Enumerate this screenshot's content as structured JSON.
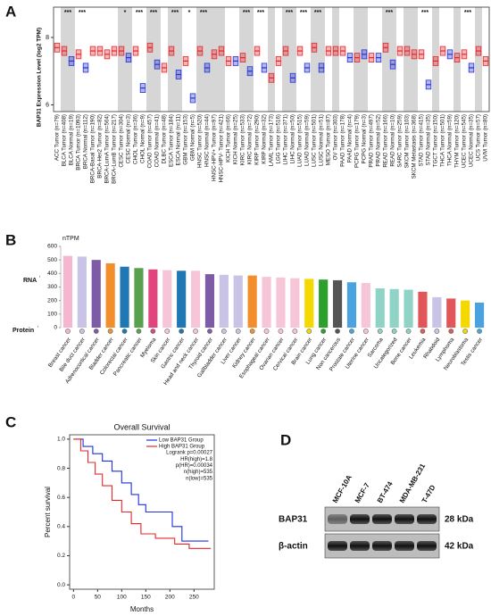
{
  "chart_data": [
    {
      "type": "box",
      "label": "A",
      "ylabel": "BAP31 Expression Level (log2 TPM)",
      "categories": [
        "ACC Tumor (n=79)",
        "BLCA Tumor (n=408)",
        "BLCA Normal (n=19)",
        "BRCA Tumor (n=1093)",
        "BRCA Normal (n=112)",
        "BRCA-Basal Tumor (n=190)",
        "BRCA-Her2 Tumor (n=82)",
        "BRCA-LumA Tumor (n=564)",
        "BRCA-LumB Tumor (n=217)",
        "CESC Tumor (n=304)",
        "CESC Normal (n=3)",
        "CHOL Tumor (n=36)",
        "CHOL Normal (n=9)",
        "COAD Tumor (n=457)",
        "COAD Normal (n=41)",
        "DLBC Tumor (n=48)",
        "ESCA Tumor (n=184)",
        "ESCA Normal (n=11)",
        "GBM Tumor (n=153)",
        "GBM Normal (n=5)",
        "HNSC Tumor (n=520)",
        "HNSC Normal (n=44)",
        "HNSC-HPV+ Tumor (n=97)",
        "HNSC-HPV- Tumor (n=421)",
        "KICH Tumor (n=66)",
        "KICH Normal (n=25)",
        "KIRC Tumor (n=533)",
        "KIRC Normal (n=72)",
        "KIRP Tumor (n=290)",
        "KIRP Normal (n=32)",
        "LAML Tumor (n=173)",
        "LGG Tumor (n=516)",
        "LIHC Tumor (n=371)",
        "LIHC Normal (n=50)",
        "LUAD Tumor (n=515)",
        "LUAD Normal (n=59)",
        "LUSC Tumor (n=501)",
        "LUSC Normal (n=51)",
        "MESO Tumor (n=87)",
        "OV Tumor (n=303)",
        "PAAD Tumor (n=178)",
        "PAAD Normal (n=4)",
        "PCPG Tumor (n=179)",
        "PCPG Normal (n=3)",
        "PRAD Tumor (n=497)",
        "PRAD Normal (n=52)",
        "READ Tumor (n=166)",
        "READ Normal (n=10)",
        "SARC Tumor (n=259)",
        "SKCM Tumor (n=103)",
        "SKCM Metastasis (n=368)",
        "STAD Tumor (n=415)",
        "STAD Normal (n=35)",
        "TGCT Tumor (n=150)",
        "THCA Tumor (n=501)",
        "THCA Normal (n=59)",
        "THYM Tumor (n=120)",
        "UCEC Tumor (n=545)",
        "UCEC Normal (n=35)",
        "UCS Tumor (n=57)",
        "UVM Tumor (n=80)"
      ],
      "values": [
        7.7,
        7.6,
        7.3,
        7.5,
        7.1,
        7.6,
        7.6,
        7.5,
        7.6,
        7.6,
        7.4,
        7.6,
        6.5,
        7.7,
        7.2,
        7.1,
        7.6,
        6.9,
        7.3,
        6.2,
        7.6,
        7.1,
        7.5,
        7.6,
        7.3,
        7.3,
        7.4,
        7.0,
        7.6,
        7.1,
        6.8,
        7.3,
        7.6,
        6.8,
        7.6,
        7.1,
        7.7,
        7.1,
        7.6,
        7.6,
        7.6,
        7.4,
        7.4,
        7.5,
        7.4,
        7.4,
        7.7,
        7.2,
        7.6,
        7.6,
        7.5,
        7.5,
        6.6,
        7.3,
        7.6,
        7.5,
        7.4,
        7.5,
        7.1,
        7.6,
        7.3
      ],
      "colors": [
        "#e8262a",
        "#e8262a",
        "#2633d8",
        "#e8262a",
        "#2633d8",
        "#e8262a",
        "#e8262a",
        "#e8262a",
        "#e8262a",
        "#e8262a",
        "#2633d8",
        "#e8262a",
        "#2633d8",
        "#e8262a",
        "#2633d8",
        "#e8262a",
        "#e8262a",
        "#2633d8",
        "#e8262a",
        "#2633d8",
        "#e8262a",
        "#2633d8",
        "#e8262a",
        "#e8262a",
        "#e8262a",
        "#2633d8",
        "#e8262a",
        "#2633d8",
        "#e8262a",
        "#2633d8",
        "#e8262a",
        "#e8262a",
        "#e8262a",
        "#2633d8",
        "#e8262a",
        "#2633d8",
        "#e8262a",
        "#2633d8",
        "#e8262a",
        "#e8262a",
        "#e8262a",
        "#2633d8",
        "#e8262a",
        "#2633d8",
        "#e8262a",
        "#2633d8",
        "#e8262a",
        "#2633d8",
        "#e8262a",
        "#e8262a",
        "#e8262a",
        "#e8262a",
        "#2633d8",
        "#e8262a",
        "#e8262a",
        "#2633d8",
        "#e8262a",
        "#e8262a",
        "#2633d8",
        "#e8262a",
        "#e8262a"
      ],
      "significance": [
        null,
        "***",
        null,
        "***",
        null,
        null,
        null,
        null,
        null,
        "*",
        null,
        "***",
        null,
        "***",
        null,
        null,
        "***",
        null,
        "*",
        null,
        "***",
        null,
        null,
        null,
        null,
        null,
        "***",
        null,
        "***",
        null,
        null,
        null,
        "***",
        null,
        "***",
        null,
        "***",
        null,
        null,
        null,
        null,
        null,
        null,
        null,
        null,
        null,
        "***",
        null,
        null,
        null,
        null,
        "***",
        null,
        null,
        null,
        null,
        null,
        "***",
        null,
        null,
        null
      ],
      "ylim": [
        5.8,
        8.9
      ],
      "yticks": [
        6,
        8
      ]
    },
    {
      "type": "bar",
      "label": "B",
      "ylabel": "nTPM",
      "row_labels": [
        "RNA",
        "Protein"
      ],
      "categories": [
        "Breast cancer",
        "Bile duct cancer",
        "Adrenocortical cancer",
        "Bladder cancer",
        "Colorectal cancer",
        "Pancreatic cancer",
        "Myeloma",
        "Skin cancer",
        "Gastric cancer",
        "Head and neck cancer",
        "Thyroid cancer",
        "Gallbladder cancer",
        "Liver cancer",
        "Kidney cancer",
        "Esophageal cancer",
        "Ovarian cancer",
        "Cervical cancer",
        "Brain cancer",
        "Lung cancer",
        "Non cancerous",
        "Prostate cancer",
        "Uterine cancer",
        "Sarcoma",
        "Uncategorized",
        "Bone cancer",
        "Leukemia",
        "Rhabdoid",
        "Lymphoma",
        "Neuroblastoma",
        "Testis cancer"
      ],
      "values": [
        530,
        525,
        500,
        475,
        450,
        440,
        430,
        425,
        420,
        420,
        395,
        390,
        385,
        385,
        375,
        370,
        365,
        360,
        355,
        350,
        335,
        330,
        290,
        285,
        280,
        265,
        225,
        215,
        200,
        185
      ],
      "colors": [
        "#f5b6d0",
        "#c9c3e6",
        "#7d5ba6",
        "#f28e2b",
        "#1f77b4",
        "#59a14f",
        "#e0457b",
        "#f6c6d8",
        "#1f77b4",
        "#f6c6d8",
        "#7d5ba6",
        "#c9c3e6",
        "#c9c3e6",
        "#f28e2b",
        "#f6c6d8",
        "#f6c6d8",
        "#f6c6d8",
        "#f5d800",
        "#2ca02c",
        "#555555",
        "#4aa3df",
        "#f6c6d8",
        "#8fd3c6",
        "#8fd3c6",
        "#8fd3c6",
        "#e15759",
        "#c9c3e6",
        "#e15759",
        "#f5d800",
        "#4aa3df"
      ],
      "ylim": [
        0,
        600
      ],
      "yticks": [
        0,
        100,
        200,
        300,
        400,
        500,
        600
      ]
    },
    {
      "type": "line",
      "label": "C",
      "title": "Overall Survival",
      "xlabel": "Months",
      "ylabel": "Percent survival",
      "series": [
        {
          "name": "Low BAP31 Group",
          "color": "#1f2fe0",
          "x": [
            0,
            20,
            20,
            40,
            40,
            60,
            60,
            80,
            80,
            100,
            100,
            120,
            120,
            135,
            135,
            150,
            150,
            205,
            205,
            225,
            225,
            280
          ],
          "y": [
            1,
            1,
            0.95,
            0.95,
            0.9,
            0.9,
            0.85,
            0.85,
            0.78,
            0.78,
            0.7,
            0.7,
            0.62,
            0.62,
            0.55,
            0.55,
            0.5,
            0.5,
            0.4,
            0.4,
            0.3,
            0.3
          ]
        },
        {
          "name": "High BAP31 Group",
          "color": "#e8262a",
          "x": [
            0,
            15,
            15,
            30,
            30,
            45,
            45,
            60,
            60,
            80,
            80,
            100,
            100,
            120,
            120,
            140,
            140,
            170,
            170,
            210,
            210,
            240,
            240,
            285
          ],
          "y": [
            1,
            1,
            0.92,
            0.92,
            0.84,
            0.84,
            0.76,
            0.76,
            0.68,
            0.68,
            0.58,
            0.58,
            0.5,
            0.5,
            0.42,
            0.42,
            0.35,
            0.35,
            0.32,
            0.32,
            0.28,
            0.28,
            0.25,
            0.25
          ]
        }
      ],
      "stats": [
        "Logrank p=0.00027",
        "HR(high)=1.8",
        "p(HR)=0.00034",
        "n(high)=535",
        "n(low)=535"
      ],
      "xlim": [
        -8,
        292
      ],
      "xticks": [
        0,
        50,
        100,
        150,
        200,
        250
      ],
      "ylim": [
        -0.03,
        1.03
      ],
      "yticks": [
        {
          "value": 0,
          "label": "0.0"
        },
        0.2,
        0.4,
        0.6,
        0.8,
        {
          "value": 1,
          "label": "1.0"
        }
      ]
    },
    {
      "type": "blot",
      "label": "D",
      "lanes": [
        "MCF-10A",
        "MCF-7",
        "BT-474",
        "MDA-MB-231",
        "T-47D"
      ],
      "rows": [
        {
          "name": "BAP31",
          "size": "28 kDa"
        },
        {
          "name": "β-actin",
          "size": "42 kDa"
        }
      ]
    }
  ]
}
